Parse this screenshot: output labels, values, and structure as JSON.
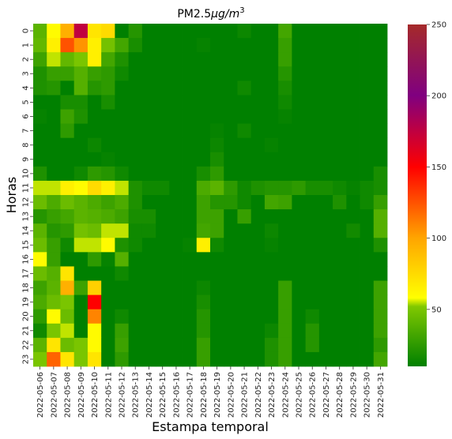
{
  "chart_data": {
    "type": "heatmap",
    "title": "PM2.5",
    "title_unit": "µg/m",
    "title_unit_exp": "3",
    "xlabel": "Estampa temporal",
    "ylabel": "Horas",
    "x": [
      "2022-05-06",
      "2022-05-07",
      "2022-05-08",
      "2022-05-09",
      "2022-05-10",
      "2022-05-11",
      "2022-05-12",
      "2022-05-13",
      "2022-05-14",
      "2022-05-15",
      "2022-05-16",
      "2022-05-17",
      "2022-05-18",
      "2022-05-19",
      "2022-05-20",
      "2022-05-21",
      "2022-05-22",
      "2022-05-23",
      "2022-05-24",
      "2022-05-25",
      "2022-05-26",
      "2022-05-27",
      "2022-05-28",
      "2022-05-29",
      "2022-05-30",
      "2022-05-31"
    ],
    "y": [
      "0",
      "1",
      "2",
      "3",
      "4",
      "5",
      "6",
      "7",
      "8",
      "9",
      "10",
      "11",
      "12",
      "13",
      "14",
      "15",
      "16",
      "17",
      "18",
      "19",
      "20",
      "21",
      "22",
      "23"
    ],
    "colorbar": {
      "min": 10,
      "max": 250,
      "ticks": [
        50,
        100,
        150,
        200,
        250
      ]
    },
    "colormap": [
      "#008000",
      "#80c800",
      "#ffff00",
      "#ffa500",
      "#ff0000",
      "#800080",
      "#a52a2a"
    ],
    "values": [
      [
        40,
        60,
        95,
        175,
        70,
        75,
        10,
        22,
        10,
        10,
        10,
        10,
        10,
        10,
        10,
        14,
        10,
        10,
        32,
        10,
        10,
        10,
        10,
        10,
        10,
        10
      ],
      [
        42,
        65,
        125,
        105,
        65,
        48,
        32,
        18,
        10,
        10,
        10,
        10,
        12,
        10,
        10,
        10,
        10,
        10,
        28,
        10,
        10,
        10,
        10,
        10,
        10,
        10
      ],
      [
        30,
        55,
        42,
        50,
        65,
        32,
        20,
        10,
        10,
        10,
        10,
        10,
        10,
        10,
        10,
        10,
        10,
        10,
        28,
        10,
        10,
        10,
        10,
        10,
        10,
        10
      ],
      [
        20,
        28,
        28,
        38,
        28,
        25,
        15,
        10,
        10,
        10,
        10,
        10,
        10,
        10,
        10,
        10,
        10,
        10,
        22,
        10,
        10,
        10,
        10,
        10,
        10,
        10
      ],
      [
        20,
        22,
        10,
        38,
        22,
        25,
        10,
        10,
        10,
        10,
        10,
        10,
        10,
        10,
        10,
        15,
        10,
        10,
        18,
        10,
        10,
        10,
        10,
        10,
        10,
        10
      ],
      [
        10,
        10,
        18,
        18,
        10,
        18,
        10,
        10,
        10,
        10,
        10,
        10,
        10,
        10,
        10,
        10,
        10,
        10,
        15,
        10,
        10,
        10,
        10,
        10,
        10,
        10
      ],
      [
        12,
        10,
        30,
        20,
        10,
        10,
        10,
        10,
        10,
        10,
        10,
        10,
        10,
        10,
        10,
        10,
        10,
        10,
        12,
        10,
        10,
        10,
        10,
        10,
        10,
        10
      ],
      [
        10,
        10,
        25,
        10,
        10,
        10,
        10,
        10,
        10,
        10,
        10,
        10,
        10,
        12,
        10,
        15,
        10,
        10,
        10,
        10,
        10,
        10,
        10,
        10,
        10,
        10
      ],
      [
        10,
        10,
        10,
        10,
        14,
        10,
        10,
        10,
        10,
        10,
        10,
        10,
        10,
        14,
        10,
        10,
        10,
        12,
        10,
        10,
        10,
        10,
        10,
        10,
        10,
        10
      ],
      [
        10,
        10,
        10,
        10,
        10,
        12,
        10,
        10,
        10,
        10,
        10,
        10,
        10,
        18,
        10,
        10,
        10,
        10,
        10,
        10,
        10,
        10,
        10,
        10,
        10,
        10
      ],
      [
        20,
        10,
        10,
        15,
        25,
        22,
        15,
        10,
        10,
        10,
        10,
        10,
        18,
        25,
        10,
        10,
        10,
        10,
        10,
        10,
        10,
        10,
        10,
        10,
        10,
        18
      ],
      [
        55,
        55,
        65,
        60,
        75,
        65,
        55,
        20,
        15,
        15,
        10,
        10,
        35,
        40,
        25,
        15,
        20,
        22,
        22,
        25,
        18,
        18,
        15,
        12,
        15,
        18
      ],
      [
        45,
        35,
        45,
        40,
        35,
        30,
        35,
        20,
        10,
        10,
        10,
        10,
        30,
        22,
        22,
        15,
        10,
        32,
        30,
        10,
        10,
        10,
        20,
        10,
        15,
        28
      ],
      [
        22,
        28,
        32,
        40,
        38,
        35,
        30,
        18,
        18,
        10,
        10,
        10,
        30,
        30,
        10,
        28,
        10,
        10,
        10,
        10,
        10,
        10,
        10,
        10,
        10,
        38
      ],
      [
        40,
        22,
        25,
        48,
        45,
        55,
        55,
        15,
        15,
        10,
        10,
        10,
        32,
        30,
        10,
        10,
        10,
        14,
        10,
        10,
        10,
        10,
        10,
        16,
        10,
        38
      ],
      [
        45,
        28,
        15,
        55,
        55,
        60,
        20,
        15,
        10,
        10,
        10,
        12,
        65,
        15,
        10,
        10,
        10,
        12,
        10,
        10,
        10,
        10,
        10,
        10,
        10,
        20
      ],
      [
        60,
        28,
        10,
        10,
        25,
        12,
        38,
        10,
        10,
        10,
        10,
        10,
        10,
        10,
        10,
        10,
        10,
        10,
        10,
        10,
        10,
        10,
        10,
        10,
        10,
        10
      ],
      [
        45,
        38,
        70,
        10,
        10,
        10,
        15,
        10,
        10,
        10,
        10,
        10,
        10,
        10,
        10,
        10,
        10,
        10,
        10,
        10,
        10,
        10,
        10,
        10,
        10,
        10
      ],
      [
        30,
        40,
        95,
        30,
        80,
        10,
        10,
        10,
        10,
        10,
        10,
        10,
        14,
        10,
        10,
        10,
        10,
        10,
        28,
        10,
        10,
        10,
        10,
        10,
        10,
        30
      ],
      [
        35,
        45,
        50,
        10,
        150,
        10,
        10,
        10,
        10,
        10,
        10,
        10,
        18,
        10,
        10,
        10,
        10,
        10,
        28,
        10,
        10,
        10,
        10,
        10,
        10,
        30
      ],
      [
        25,
        60,
        45,
        10,
        110,
        10,
        15,
        10,
        10,
        10,
        10,
        10,
        22,
        10,
        10,
        10,
        10,
        10,
        28,
        10,
        15,
        10,
        10,
        10,
        10,
        30
      ],
      [
        15,
        50,
        55,
        10,
        60,
        10,
        28,
        10,
        10,
        10,
        10,
        10,
        22,
        10,
        10,
        10,
        10,
        14,
        28,
        10,
        22,
        10,
        10,
        10,
        10,
        30
      ],
      [
        40,
        70,
        45,
        50,
        60,
        10,
        30,
        10,
        10,
        10,
        10,
        10,
        28,
        10,
        10,
        10,
        10,
        20,
        28,
        10,
        22,
        10,
        10,
        10,
        10,
        25
      ],
      [
        50,
        120,
        70,
        50,
        70,
        10,
        25,
        10,
        10,
        10,
        10,
        10,
        28,
        10,
        10,
        10,
        10,
        20,
        28,
        10,
        10,
        10,
        10,
        10,
        10,
        32
      ]
    ]
  }
}
